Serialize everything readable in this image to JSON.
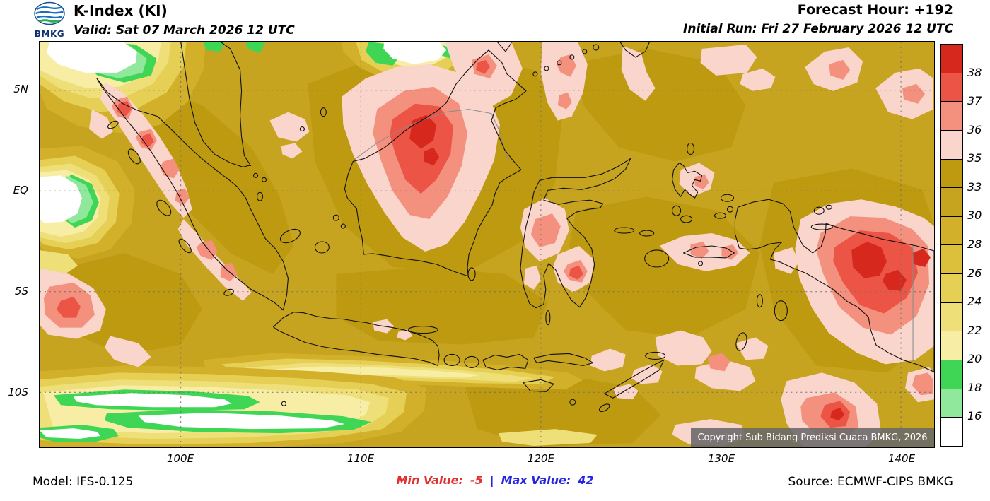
{
  "palette": {
    "dark_red": "#D6281C",
    "red": "#EC5545",
    "salmon": "#F4907E",
    "pink": "#FAD5CC",
    "gold_dark": "#BE9A10",
    "gold": "#C7A41F",
    "gold_light": "#D2B02A",
    "yellow": "#E6CF55",
    "yellow_light": "#EFDF78",
    "yellow_pale": "#F7EDA5",
    "green": "#3FD656",
    "green_light": "#8FE89C",
    "white": "#FFFFFF",
    "min_color": "#E03030",
    "max_color": "#2626DF",
    "copyright_bg": "rgba(105,105,105,0.88)"
  },
  "header": {
    "logo_label": "BMKG",
    "title": "K-Index (KI)",
    "valid": "Valid: Sat 07 March 2026 12 UTC",
    "forecast_hour": "Forecast Hour: +192",
    "initial_run": "Initial Run: Fri 27 February 2026 12 UTC"
  },
  "map": {
    "lat_labels": [
      "5N",
      "EQ",
      "5S",
      "10S"
    ],
    "lon_labels": [
      "100E",
      "110E",
      "120E",
      "130E",
      "140E"
    ],
    "copyright": "Copyright Sub Bidang Prediksi Cuaca BMKG, 2026"
  },
  "colorbar": {
    "labels": [
      "38",
      "37",
      "36",
      "35",
      "33",
      "30",
      "28",
      "26",
      "24",
      "22",
      "20",
      "18",
      "16"
    ],
    "colors": [
      "#D6281C",
      "#EC5545",
      "#F4907E",
      "#FAD5CC",
      "#BE9A10",
      "#C7A41F",
      "#D2B02A",
      "#DCBF3A",
      "#E6CF55",
      "#EFDF78",
      "#F7EDA5",
      "#3FD656",
      "#8FE89C",
      "#FFFFFF"
    ]
  },
  "footer": {
    "model": "Model: IFS-0.125",
    "min_label": "Min Value:",
    "min_value": "-5",
    "separator": "|",
    "max_label": "Max Value:",
    "max_value": "42",
    "source": "Source: ECMWF-CIPS BMKG"
  },
  "chart_data": {
    "type": "heatmap",
    "title": "K-Index (KI)",
    "valid_time": "Sat 07 March 2026 12 UTC",
    "forecast_hour": "+192",
    "initial_run": "Fri 27 February 2026 12 UTC",
    "model": "IFS-0.125",
    "source": "ECMWF-CIPS BMKG",
    "min_value": -5,
    "max_value": 42,
    "colorbar_levels": [
      16,
      18,
      20,
      22,
      24,
      26,
      28,
      30,
      33,
      35,
      36,
      37,
      38
    ],
    "x_axis_ticks": [
      "100E",
      "110E",
      "120E",
      "130E",
      "140E"
    ],
    "y_axis_ticks": [
      "5N",
      "EQ",
      "5S",
      "10S"
    ],
    "background_field": "Most of the domain lies between KI 30 and 35 (gold shades)",
    "high_regions": [
      "Barisan mountain range of Sumatra (KI 35-38)",
      "Central Kalimantan (KI 36-38+, deepest red core of the map)",
      "Central and southeastern Sulawesi (KI 35-37)",
      "Seram / southern Maluku (KI 35-36)",
      "Central Papua (KI 37-38+, near the map maximum of 42)",
      "Far southwest corner of the domain near the left edge at 5S (KI 36-37)",
      "South of Timor at the bottom-right of the domain (KI 36-38)"
    ],
    "low_regions": [
      "Northwest corner north of 5N near 94E-97E (KI < 16, white)",
      "West of Sumatra along the equator at the left map edge (KI < 16)",
      "South Indian Ocean streaks near 10S between 94E and 112E (KI 14-20, green/white)",
      "Small pocket north of Borneo near 110E at the top edge (KI 16-22)"
    ]
  }
}
